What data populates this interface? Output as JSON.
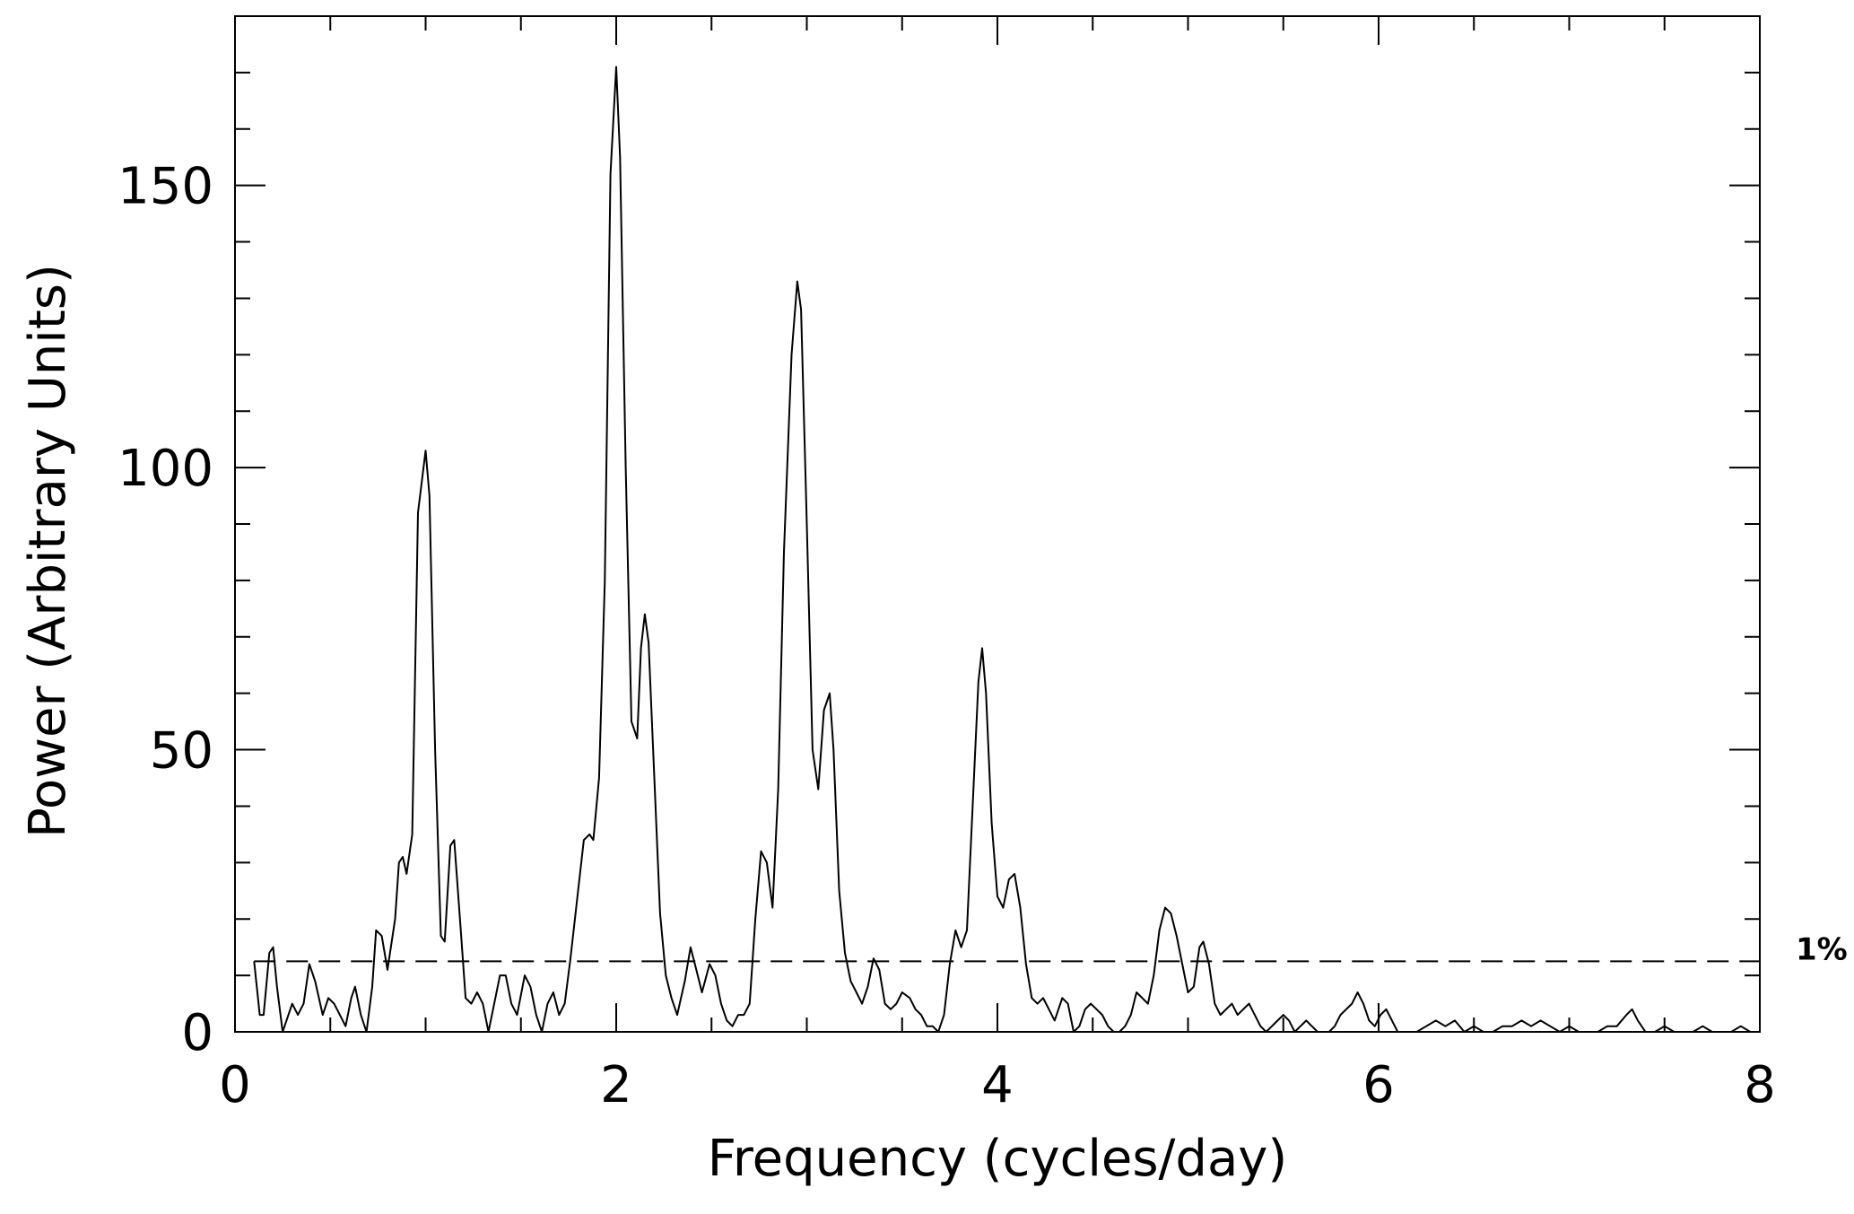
{
  "chart_data": {
    "type": "line",
    "xlabel": "Frequency (cycles/day)",
    "ylabel": "Power (Arbitrary Units)",
    "xlim": [
      0,
      8
    ],
    "ylim": [
      0,
      180
    ],
    "x_major_ticks": [
      0,
      2,
      4,
      6,
      8
    ],
    "x_tick_labels": [
      "0",
      "2",
      "4",
      "6",
      "8"
    ],
    "x_minor_step": 0.5,
    "y_major_ticks": [
      0,
      50,
      100,
      150
    ],
    "y_tick_labels": [
      "0",
      "50",
      "100",
      "150"
    ],
    "y_minor_step": 10,
    "grid": false,
    "threshold": {
      "value": 12.5,
      "label": "1%",
      "style": "dashed"
    },
    "series": [
      {
        "points": [
          [
            0.1,
            12.5
          ],
          [
            0.13,
            3
          ],
          [
            0.15,
            3
          ],
          [
            0.18,
            14
          ],
          [
            0.2,
            15
          ],
          [
            0.22,
            8
          ],
          [
            0.25,
            0
          ],
          [
            0.27,
            2
          ],
          [
            0.3,
            5
          ],
          [
            0.33,
            3
          ],
          [
            0.36,
            5
          ],
          [
            0.39,
            12
          ],
          [
            0.42,
            9
          ],
          [
            0.46,
            3
          ],
          [
            0.49,
            6
          ],
          [
            0.52,
            5
          ],
          [
            0.55,
            3
          ],
          [
            0.58,
            1
          ],
          [
            0.61,
            6
          ],
          [
            0.63,
            8
          ],
          [
            0.66,
            3
          ],
          [
            0.69,
            0
          ],
          [
            0.72,
            8
          ],
          [
            0.74,
            18
          ],
          [
            0.77,
            17
          ],
          [
            0.8,
            11
          ],
          [
            0.84,
            20
          ],
          [
            0.86,
            30
          ],
          [
            0.88,
            31
          ],
          [
            0.9,
            28
          ],
          [
            0.93,
            35
          ],
          [
            0.96,
            92
          ],
          [
            1.0,
            103
          ],
          [
            1.02,
            95
          ],
          [
            1.05,
            50
          ],
          [
            1.08,
            17
          ],
          [
            1.1,
            16
          ],
          [
            1.13,
            33
          ],
          [
            1.15,
            34
          ],
          [
            1.18,
            20
          ],
          [
            1.21,
            6
          ],
          [
            1.24,
            5
          ],
          [
            1.27,
            7
          ],
          [
            1.3,
            5
          ],
          [
            1.33,
            0
          ],
          [
            1.36,
            5
          ],
          [
            1.39,
            10
          ],
          [
            1.42,
            10
          ],
          [
            1.45,
            5
          ],
          [
            1.48,
            3
          ],
          [
            1.52,
            10
          ],
          [
            1.55,
            8
          ],
          [
            1.58,
            3
          ],
          [
            1.61,
            0
          ],
          [
            1.64,
            5
          ],
          [
            1.67,
            7
          ],
          [
            1.7,
            3
          ],
          [
            1.73,
            5
          ],
          [
            1.76,
            13
          ],
          [
            1.8,
            25
          ],
          [
            1.83,
            34
          ],
          [
            1.86,
            35
          ],
          [
            1.88,
            34
          ],
          [
            1.91,
            45
          ],
          [
            1.94,
            80
          ],
          [
            1.97,
            152
          ],
          [
            2.0,
            171
          ],
          [
            2.02,
            155
          ],
          [
            2.05,
            100
          ],
          [
            2.08,
            55
          ],
          [
            2.11,
            52
          ],
          [
            2.13,
            68
          ],
          [
            2.15,
            74
          ],
          [
            2.17,
            69
          ],
          [
            2.2,
            45
          ],
          [
            2.23,
            21
          ],
          [
            2.26,
            10
          ],
          [
            2.29,
            6
          ],
          [
            2.32,
            3
          ],
          [
            2.36,
            9
          ],
          [
            2.39,
            15
          ],
          [
            2.42,
            11
          ],
          [
            2.45,
            7
          ],
          [
            2.49,
            12
          ],
          [
            2.52,
            10
          ],
          [
            2.55,
            5
          ],
          [
            2.58,
            2
          ],
          [
            2.61,
            1
          ],
          [
            2.64,
            3
          ],
          [
            2.67,
            3
          ],
          [
            2.7,
            5
          ],
          [
            2.73,
            20
          ],
          [
            2.76,
            32
          ],
          [
            2.79,
            30
          ],
          [
            2.82,
            22
          ],
          [
            2.85,
            43
          ],
          [
            2.88,
            85
          ],
          [
            2.92,
            120
          ],
          [
            2.95,
            133
          ],
          [
            2.97,
            128
          ],
          [
            3.0,
            90
          ],
          [
            3.03,
            50
          ],
          [
            3.06,
            43
          ],
          [
            3.09,
            57
          ],
          [
            3.12,
            60
          ],
          [
            3.14,
            50
          ],
          [
            3.17,
            25
          ],
          [
            3.2,
            14
          ],
          [
            3.23,
            9
          ],
          [
            3.26,
            7
          ],
          [
            3.29,
            5
          ],
          [
            3.32,
            8
          ],
          [
            3.35,
            13
          ],
          [
            3.38,
            11
          ],
          [
            3.41,
            5
          ],
          [
            3.44,
            4
          ],
          [
            3.47,
            5
          ],
          [
            3.5,
            7
          ],
          [
            3.54,
            6
          ],
          [
            3.57,
            4
          ],
          [
            3.6,
            3
          ],
          [
            3.63,
            1
          ],
          [
            3.66,
            1
          ],
          [
            3.69,
            0
          ],
          [
            3.72,
            3
          ],
          [
            3.75,
            12
          ],
          [
            3.78,
            18
          ],
          [
            3.81,
            15
          ],
          [
            3.84,
            18
          ],
          [
            3.87,
            40
          ],
          [
            3.9,
            62
          ],
          [
            3.92,
            68
          ],
          [
            3.94,
            60
          ],
          [
            3.97,
            37
          ],
          [
            4.0,
            24
          ],
          [
            4.03,
            22
          ],
          [
            4.06,
            27
          ],
          [
            4.09,
            28
          ],
          [
            4.12,
            22
          ],
          [
            4.15,
            12
          ],
          [
            4.18,
            6
          ],
          [
            4.21,
            5
          ],
          [
            4.24,
            6
          ],
          [
            4.27,
            4
          ],
          [
            4.3,
            2
          ],
          [
            4.34,
            6
          ],
          [
            4.37,
            5
          ],
          [
            4.4,
            0
          ],
          [
            4.43,
            1
          ],
          [
            4.46,
            4
          ],
          [
            4.49,
            5
          ],
          [
            4.52,
            4
          ],
          [
            4.55,
            3
          ],
          [
            4.58,
            1
          ],
          [
            4.61,
            0
          ],
          [
            4.64,
            0
          ],
          [
            4.67,
            1
          ],
          [
            4.7,
            3
          ],
          [
            4.73,
            7
          ],
          [
            4.76,
            6
          ],
          [
            4.79,
            5
          ],
          [
            4.82,
            10
          ],
          [
            4.85,
            18
          ],
          [
            4.88,
            22
          ],
          [
            4.91,
            21
          ],
          [
            4.94,
            17
          ],
          [
            4.97,
            12
          ],
          [
            5.0,
            7
          ],
          [
            5.03,
            8
          ],
          [
            5.06,
            15
          ],
          [
            5.08,
            16
          ],
          [
            5.11,
            12
          ],
          [
            5.14,
            5
          ],
          [
            5.17,
            3
          ],
          [
            5.2,
            4
          ],
          [
            5.23,
            5
          ],
          [
            5.26,
            3
          ],
          [
            5.29,
            4
          ],
          [
            5.32,
            5
          ],
          [
            5.35,
            3
          ],
          [
            5.38,
            1
          ],
          [
            5.41,
            0
          ],
          [
            5.44,
            1
          ],
          [
            5.47,
            2
          ],
          [
            5.5,
            3
          ],
          [
            5.53,
            2
          ],
          [
            5.56,
            0
          ],
          [
            5.59,
            1
          ],
          [
            5.62,
            2
          ],
          [
            5.65,
            1
          ],
          [
            5.68,
            0
          ],
          [
            5.71,
            0
          ],
          [
            5.74,
            0
          ],
          [
            5.77,
            1
          ],
          [
            5.8,
            3
          ],
          [
            5.83,
            4
          ],
          [
            5.86,
            5
          ],
          [
            5.89,
            7
          ],
          [
            5.92,
            5
          ],
          [
            5.95,
            2
          ],
          [
            5.98,
            1
          ],
          [
            6.01,
            3
          ],
          [
            6.04,
            4
          ],
          [
            6.07,
            2
          ],
          [
            6.1,
            0
          ],
          [
            6.15,
            0
          ],
          [
            6.2,
            0
          ],
          [
            6.25,
            1
          ],
          [
            6.3,
            2
          ],
          [
            6.35,
            1
          ],
          [
            6.4,
            2
          ],
          [
            6.45,
            0
          ],
          [
            6.5,
            1
          ],
          [
            6.55,
            0
          ],
          [
            6.6,
            0
          ],
          [
            6.65,
            1
          ],
          [
            6.7,
            1
          ],
          [
            6.75,
            2
          ],
          [
            6.8,
            1
          ],
          [
            6.85,
            2
          ],
          [
            6.9,
            1
          ],
          [
            6.95,
            0
          ],
          [
            7.0,
            1
          ],
          [
            7.05,
            0
          ],
          [
            7.1,
            0
          ],
          [
            7.15,
            0
          ],
          [
            7.2,
            1
          ],
          [
            7.25,
            1
          ],
          [
            7.3,
            3
          ],
          [
            7.33,
            4
          ],
          [
            7.36,
            2
          ],
          [
            7.4,
            0
          ],
          [
            7.45,
            0
          ],
          [
            7.5,
            1
          ],
          [
            7.55,
            0
          ],
          [
            7.6,
            0
          ],
          [
            7.65,
            0
          ],
          [
            7.7,
            1
          ],
          [
            7.75,
            0
          ],
          [
            7.8,
            0
          ],
          [
            7.85,
            0
          ],
          [
            7.9,
            1
          ],
          [
            7.95,
            0
          ],
          [
            8.0,
            0
          ]
        ]
      }
    ]
  }
}
